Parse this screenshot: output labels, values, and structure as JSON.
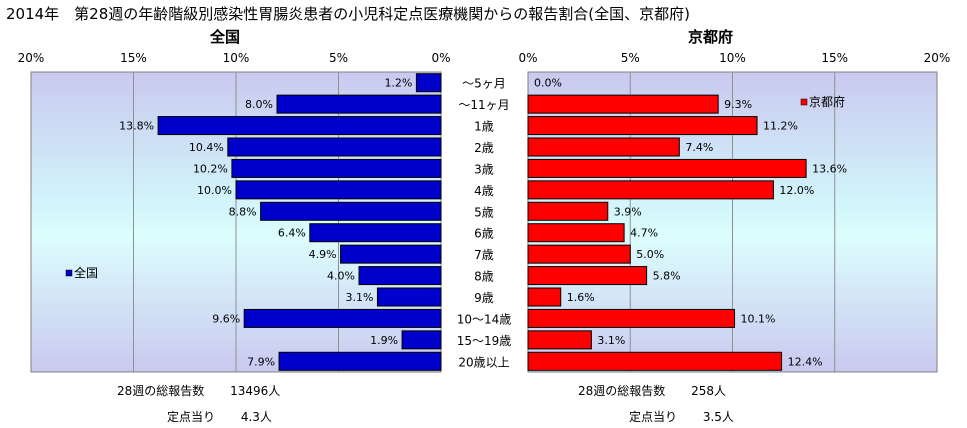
{
  "title": "2014年　第28週の年齢階級別感染性胃腸炎患者の小児科定点医療機関からの報告割合(全国、京都府)",
  "chart_data": [
    {
      "type": "bar",
      "orientation": "horizontal",
      "title": "全国",
      "categories": [
        "～5ヶ月",
        "～11ヶ月",
        "1歳",
        "2歳",
        "3歳",
        "4歳",
        "5歳",
        "6歳",
        "7歳",
        "8歳",
        "9歳",
        "10～14歳",
        "15～19歳",
        "20歳以上"
      ],
      "series": [
        {
          "name": "全国",
          "values": [
            1.2,
            8.0,
            13.8,
            10.4,
            10.2,
            10.0,
            8.8,
            6.4,
            4.9,
            4.0,
            3.1,
            9.6,
            1.9,
            7.9
          ],
          "color": "#0000cc"
        }
      ],
      "value_labels": [
        "1.2%",
        "8.0%",
        "13.8%",
        "10.4%",
        "10.2%",
        "10.0%",
        "8.8%",
        "6.4%",
        "4.9%",
        "4.0%",
        "3.1%",
        "9.6%",
        "1.9%",
        "7.9%"
      ],
      "xlim": [
        0,
        20
      ],
      "x_direction": "reversed",
      "ticks": [
        "20%",
        "15%",
        "10%",
        "5%",
        "0%"
      ],
      "legend": "left-middle",
      "grid": true
    },
    {
      "type": "bar",
      "orientation": "horizontal",
      "title": "京都府",
      "categories": [
        "～5ヶ月",
        "～11ヶ月",
        "1歳",
        "2歳",
        "3歳",
        "4歳",
        "5歳",
        "6歳",
        "7歳",
        "8歳",
        "9歳",
        "10～14歳",
        "15～19歳",
        "20歳以上"
      ],
      "series": [
        {
          "name": "京都府",
          "values": [
            0.0,
            9.3,
            11.2,
            7.4,
            13.6,
            12.0,
            3.9,
            4.7,
            5.0,
            5.8,
            1.6,
            10.1,
            3.1,
            12.4
          ],
          "color": "#ff0000"
        }
      ],
      "value_labels": [
        "0.0%",
        "9.3%",
        "11.2%",
        "7.4%",
        "13.6%",
        "12.0%",
        "3.9%",
        "4.7%",
        "5.0%",
        "5.8%",
        "1.6%",
        "10.1%",
        "3.1%",
        "12.4%"
      ],
      "xlim": [
        0,
        20
      ],
      "ticks": [
        "0%",
        "5%",
        "10%",
        "15%",
        "20%"
      ],
      "legend": "top-right",
      "grid": true
    }
  ],
  "footer": {
    "left": {
      "total_label": "28週の総報告数",
      "total_value": "13496人",
      "per_label": "定点当り",
      "per_value": "4.3人"
    },
    "right": {
      "total_label": "28週の総報告数",
      "total_value": "258人",
      "per_label": "定点当り",
      "per_value": "3.5人"
    }
  }
}
